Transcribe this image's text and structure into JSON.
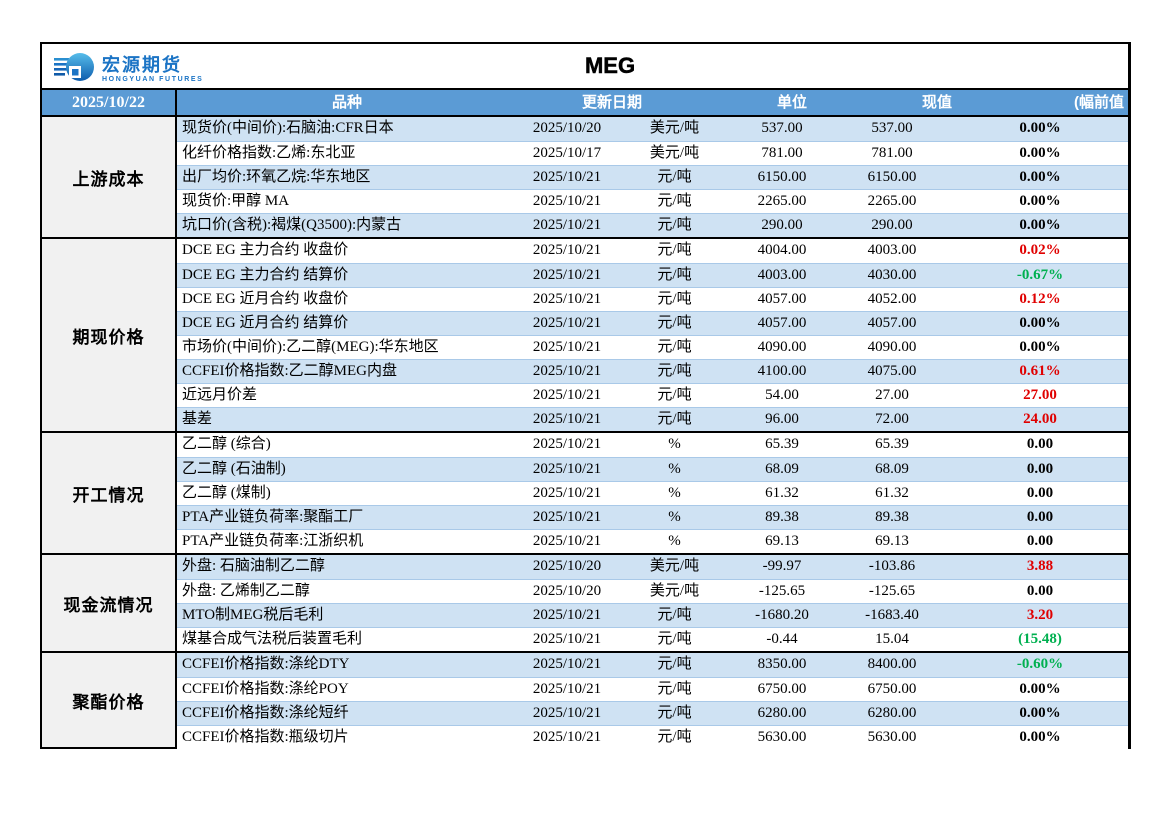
{
  "brand": {
    "name_cn": "宏源期货",
    "name_en": "HONGYUAN FUTURES"
  },
  "title": "MEG",
  "header": {
    "report_date": "2025/10/22",
    "columns": {
      "product": "品种",
      "update_date": "更新日期",
      "unit": "单位",
      "current": "现值",
      "prev_change": "(幅前值"
    }
  },
  "colors": {
    "header_bg": "#5b9bd5",
    "stripe_blue": "#cfe2f3",
    "label_bg": "#f1f1f1",
    "up_red": "#e00000",
    "down_green": "#00b050"
  },
  "sections": [
    {
      "label": "上游成本",
      "rows": [
        {
          "name": "现货价(中间价):石脑油:CFR日本",
          "date": "2025/10/20",
          "unit": "美元/吨",
          "current": "537.00",
          "prev": "537.00",
          "change": "0.00%",
          "change_color": "black"
        },
        {
          "name": "化纤价格指数:乙烯:东北亚",
          "date": "2025/10/17",
          "unit": "美元/吨",
          "current": "781.00",
          "prev": "781.00",
          "change": "0.00%",
          "change_color": "black"
        },
        {
          "name": "出厂均价:环氧乙烷:华东地区",
          "date": "2025/10/21",
          "unit": "元/吨",
          "current": "6150.00",
          "prev": "6150.00",
          "change": "0.00%",
          "change_color": "black"
        },
        {
          "name": "现货价:甲醇 MA",
          "date": "2025/10/21",
          "unit": "元/吨",
          "current": "2265.00",
          "prev": "2265.00",
          "change": "0.00%",
          "change_color": "black"
        },
        {
          "name": "坑口价(含税):褐煤(Q3500):内蒙古",
          "date": "2025/10/21",
          "unit": "元/吨",
          "current": "290.00",
          "prev": "290.00",
          "change": "0.00%",
          "change_color": "black"
        }
      ]
    },
    {
      "label": "期现价格",
      "rows": [
        {
          "name": "DCE EG 主力合约 收盘价",
          "date": "2025/10/21",
          "unit": "元/吨",
          "current": "4004.00",
          "prev": "4003.00",
          "change": "0.02%",
          "change_color": "red"
        },
        {
          "name": "DCE EG 主力合约 结算价",
          "date": "2025/10/21",
          "unit": "元/吨",
          "current": "4003.00",
          "prev": "4030.00",
          "change": "-0.67%",
          "change_color": "green"
        },
        {
          "name": "DCE EG 近月合约 收盘价",
          "date": "2025/10/21",
          "unit": "元/吨",
          "current": "4057.00",
          "prev": "4052.00",
          "change": "0.12%",
          "change_color": "red"
        },
        {
          "name": "DCE EG 近月合约 结算价",
          "date": "2025/10/21",
          "unit": "元/吨",
          "current": "4057.00",
          "prev": "4057.00",
          "change": "0.00%",
          "change_color": "black"
        },
        {
          "name": "市场价(中间价):乙二醇(MEG):华东地区",
          "date": "2025/10/21",
          "unit": "元/吨",
          "current": "4090.00",
          "prev": "4090.00",
          "change": "0.00%",
          "change_color": "black"
        },
        {
          "name": "CCFEI价格指数:乙二醇MEG内盘",
          "date": "2025/10/21",
          "unit": "元/吨",
          "current": "4100.00",
          "prev": "4075.00",
          "change": "0.61%",
          "change_color": "red"
        },
        {
          "name": "近远月价差",
          "date": "2025/10/21",
          "unit": "元/吨",
          "current": "54.00",
          "prev": "27.00",
          "change": "27.00",
          "change_color": "red"
        },
        {
          "name": "基差",
          "date": "2025/10/21",
          "unit": "元/吨",
          "current": "96.00",
          "prev": "72.00",
          "change": "24.00",
          "change_color": "red"
        }
      ]
    },
    {
      "label": "开工情况",
      "rows": [
        {
          "name": "乙二醇 (综合)",
          "date": "2025/10/21",
          "unit": "%",
          "current": "65.39",
          "prev": "65.39",
          "change": "0.00",
          "change_color": "black"
        },
        {
          "name": "乙二醇 (石油制)",
          "date": "2025/10/21",
          "unit": "%",
          "current": "68.09",
          "prev": "68.09",
          "change": "0.00",
          "change_color": "black"
        },
        {
          "name": "乙二醇 (煤制)",
          "date": "2025/10/21",
          "unit": "%",
          "current": "61.32",
          "prev": "61.32",
          "change": "0.00",
          "change_color": "black"
        },
        {
          "name": "PTA产业链负荷率:聚酯工厂",
          "date": "2025/10/21",
          "unit": "%",
          "current": "89.38",
          "prev": "89.38",
          "change": "0.00",
          "change_color": "black"
        },
        {
          "name": "PTA产业链负荷率:江浙织机",
          "date": "2025/10/21",
          "unit": "%",
          "current": "69.13",
          "prev": "69.13",
          "change": "0.00",
          "change_color": "black"
        }
      ]
    },
    {
      "label": "现金流情况",
      "rows": [
        {
          "name": "外盘: 石脑油制乙二醇",
          "date": "2025/10/20",
          "unit": "美元/吨",
          "current": "-99.97",
          "prev": "-103.86",
          "change": "3.88",
          "change_color": "red"
        },
        {
          "name": "外盘: 乙烯制乙二醇",
          "date": "2025/10/20",
          "unit": "美元/吨",
          "current": "-125.65",
          "prev": "-125.65",
          "change": "0.00",
          "change_color": "black"
        },
        {
          "name": "MTO制MEG税后毛利",
          "date": "2025/10/21",
          "unit": "元/吨",
          "current": "-1680.20",
          "prev": "-1683.40",
          "change": "3.20",
          "change_color": "red"
        },
        {
          "name": "煤基合成气法税后装置毛利",
          "date": "2025/10/21",
          "unit": "元/吨",
          "current": "-0.44",
          "prev": "15.04",
          "change": "(15.48)",
          "change_color": "green"
        }
      ]
    },
    {
      "label": "聚酯价格",
      "rows": [
        {
          "name": "CCFEI价格指数:涤纶DTY",
          "date": "2025/10/21",
          "unit": "元/吨",
          "current": "8350.00",
          "prev": "8400.00",
          "change": "-0.60%",
          "change_color": "green"
        },
        {
          "name": "CCFEI价格指数:涤纶POY",
          "date": "2025/10/21",
          "unit": "元/吨",
          "current": "6750.00",
          "prev": "6750.00",
          "change": "0.00%",
          "change_color": "black"
        },
        {
          "name": "CCFEI价格指数:涤纶短纤",
          "date": "2025/10/21",
          "unit": "元/吨",
          "current": "6280.00",
          "prev": "6280.00",
          "change": "0.00%",
          "change_color": "black"
        },
        {
          "name": "CCFEI价格指数:瓶级切片",
          "date": "2025/10/21",
          "unit": "元/吨",
          "current": "5630.00",
          "prev": "5630.00",
          "change": "0.00%",
          "change_color": "black"
        }
      ]
    }
  ]
}
